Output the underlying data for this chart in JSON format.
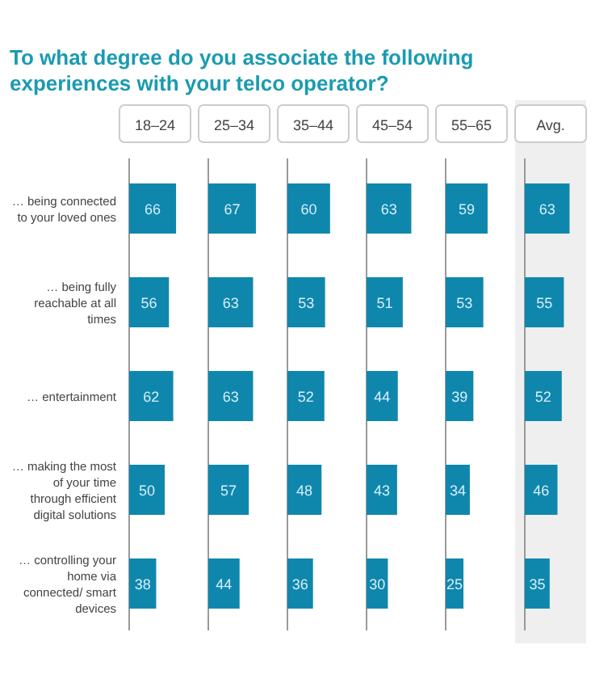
{
  "chart_data": [
    {
      "type": "bar",
      "orientation": "horizontal",
      "title": "To what degree do you associate the following experiences with your telco operator?",
      "subtitle": "18–24",
      "categories": [
        "… being connected to your loved ones",
        "… being fully reachable at all times",
        "… entertainment",
        "… making the most of your time through efficient digital solutions",
        "… controlling your home via connected/ smart devices"
      ],
      "values": [
        66,
        56,
        62,
        50,
        38
      ],
      "color": "#0f87ad",
      "data_labels": true
    },
    {
      "type": "bar",
      "orientation": "horizontal",
      "subtitle": "25–34",
      "categories": [
        null,
        null,
        null,
        null,
        null
      ],
      "values": [
        67,
        63,
        63,
        57,
        44
      ],
      "color": "#0f87ad",
      "data_labels": true
    },
    {
      "type": "bar",
      "orientation": "horizontal",
      "subtitle": "35–44",
      "categories": [
        null,
        null,
        null,
        null,
        null
      ],
      "values": [
        60,
        53,
        52,
        48,
        36
      ],
      "color": "#0f87ad",
      "data_labels": true
    },
    {
      "type": "bar",
      "orientation": "horizontal",
      "subtitle": "45–54",
      "categories": [
        null,
        null,
        null,
        null,
        null
      ],
      "values": [
        63,
        51,
        44,
        43,
        30
      ],
      "color": "#0f87ad",
      "data_labels": true
    },
    {
      "type": "bar",
      "orientation": "horizontal",
      "subtitle": "55–65",
      "categories": [
        null,
        null,
        null,
        null,
        null
      ],
      "values": [
        59,
        53,
        39,
        34,
        25
      ],
      "color": "#0f87ad",
      "data_labels": true
    },
    {
      "type": "bar",
      "orientation": "horizontal",
      "subtitle": "Avg.",
      "categories": [
        null,
        null,
        null,
        null,
        null
      ],
      "values": [
        63,
        55,
        52,
        46,
        35
      ],
      "color": "#0f87ad",
      "data_labels": true
    }
  ]
}
